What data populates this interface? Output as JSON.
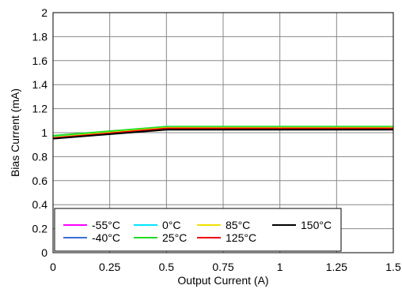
{
  "chart_data": {
    "type": "line",
    "title": "",
    "xlabel": "Output Current (A)",
    "ylabel": "Bias Current (mA)",
    "xlim": [
      0,
      1.5
    ],
    "ylim": [
      0,
      2
    ],
    "xticks": [
      "0",
      "0.25",
      "0.5",
      "0.75",
      "1",
      "1.25",
      "1.5"
    ],
    "yticks": [
      "0",
      "0.2",
      "0.4",
      "0.6",
      "0.8",
      "1",
      "1.2",
      "1.4",
      "1.6",
      "1.8",
      "2"
    ],
    "grid": true,
    "legend_position": "bottom-left",
    "series": [
      {
        "name": "-55°C",
        "color": "#ff00ff",
        "x": [
          0,
          0.5,
          1.5
        ],
        "y": [
          0.965,
          1.045,
          1.045
        ]
      },
      {
        "name": "-40°C",
        "color": "#3c6fd6",
        "x": [
          0,
          0.5,
          1.5
        ],
        "y": [
          0.965,
          1.045,
          1.045
        ]
      },
      {
        "name": "0°C",
        "color": "#00e5ff",
        "x": [
          0,
          0.5,
          1.5
        ],
        "y": [
          0.97,
          1.05,
          1.05
        ]
      },
      {
        "name": "25°C",
        "color": "#22dd22",
        "x": [
          0,
          0.5,
          1.5
        ],
        "y": [
          0.975,
          1.05,
          1.05
        ]
      },
      {
        "name": "85°C",
        "color": "#f0e000",
        "x": [
          0,
          0.5,
          1.5
        ],
        "y": [
          0.96,
          1.04,
          1.04
        ]
      },
      {
        "name": "125°C",
        "color": "#ee0000",
        "x": [
          0,
          0.5,
          1.5
        ],
        "y": [
          0.955,
          1.035,
          1.035
        ]
      },
      {
        "name": "150°C",
        "color": "#000000",
        "x": [
          0,
          0.5,
          1.5
        ],
        "y": [
          0.95,
          1.025,
          1.025
        ]
      }
    ]
  }
}
